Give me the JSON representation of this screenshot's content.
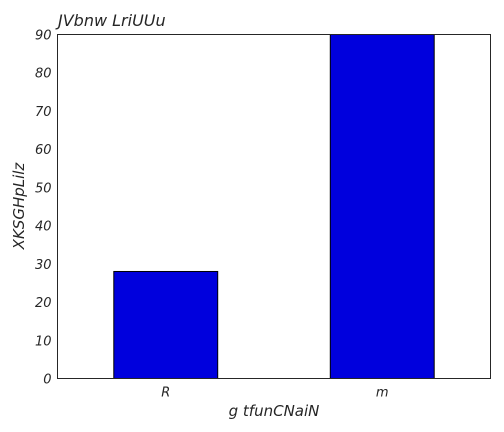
{
  "chart_data": {
    "type": "bar",
    "title": "JVbnw LriUUu",
    "xlabel": "g tfunCNaiN",
    "ylabel": "XKSGHpLilz",
    "categories": [
      "R",
      "m"
    ],
    "values": [
      28,
      90
    ],
    "ylim": [
      0,
      90
    ],
    "yticks": [
      0,
      10,
      20,
      30,
      40,
      50,
      60,
      70,
      80,
      90
    ],
    "grid": false,
    "bar_color": "#0000dd"
  }
}
